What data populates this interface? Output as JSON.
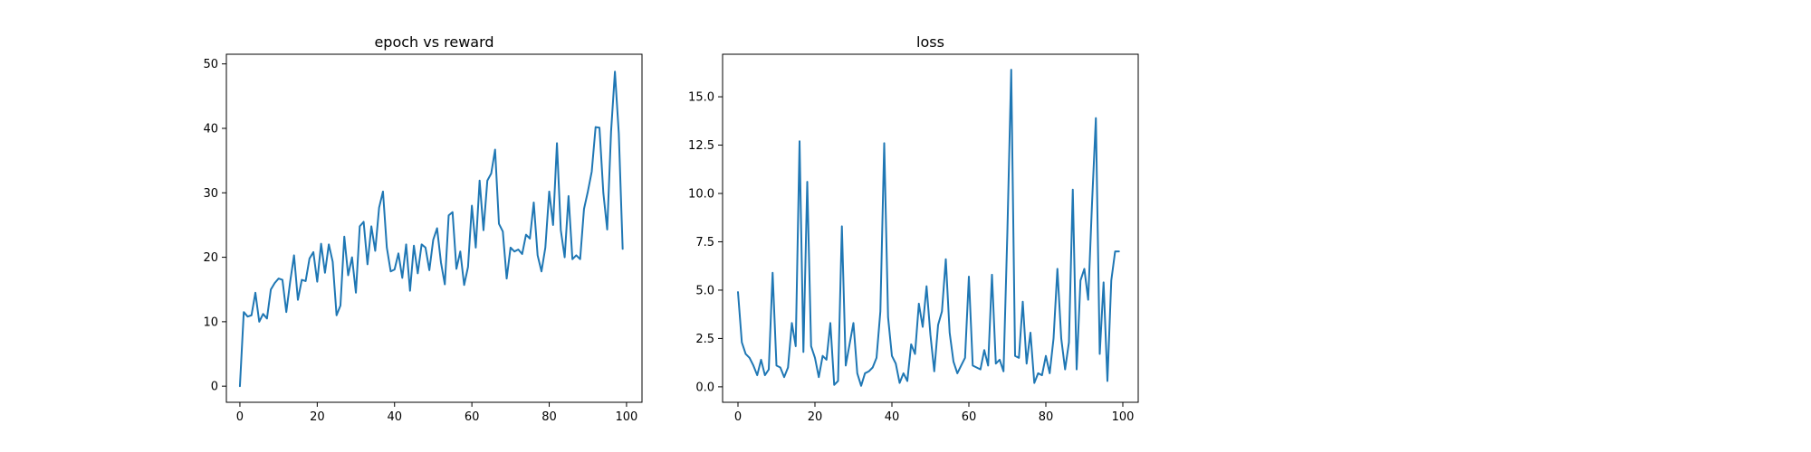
{
  "chart_data": [
    {
      "type": "line",
      "title": "epoch vs reward",
      "xlabel": "",
      "ylabel": "",
      "xlim": [
        -3.5,
        104
      ],
      "ylim": [
        -2.5,
        51.5
      ],
      "xticks": [
        0,
        20,
        40,
        60,
        80,
        100
      ],
      "xtick_labels": [
        "0",
        "20",
        "40",
        "60",
        "80",
        "100"
      ],
      "yticks": [
        0,
        10,
        20,
        30,
        40,
        50
      ],
      "ytick_labels": [
        "0",
        "10",
        "20",
        "30",
        "40",
        "50"
      ],
      "grid": false,
      "color": "#1f77b4",
      "series": [
        {
          "name": "reward",
          "x": [
            0,
            1,
            2,
            3,
            4,
            5,
            6,
            7,
            8,
            9,
            10,
            11,
            12,
            13,
            14,
            15,
            16,
            17,
            18,
            19,
            20,
            21,
            22,
            23,
            24,
            25,
            26,
            27,
            28,
            29,
            30,
            31,
            32,
            33,
            34,
            35,
            36,
            37,
            38,
            39,
            40,
            41,
            42,
            43,
            44,
            45,
            46,
            47,
            48,
            49,
            50,
            51,
            52,
            53,
            54,
            55,
            56,
            57,
            58,
            59,
            60,
            61,
            62,
            63,
            64,
            65,
            66,
            67,
            68,
            69,
            70,
            71,
            72,
            73,
            74,
            75,
            76,
            77,
            78,
            79,
            80,
            81,
            82,
            83,
            84,
            85,
            86,
            87,
            88,
            89,
            90,
            91,
            92,
            93,
            94,
            95,
            96,
            97,
            98,
            99
          ],
          "values": [
            0,
            11.5,
            10.8,
            11.0,
            14.5,
            10.0,
            11.2,
            10.5,
            15.0,
            16.0,
            16.7,
            16.5,
            11.5,
            16.2,
            20.3,
            13.4,
            16.5,
            16.3,
            19.8,
            20.8,
            16.2,
            22.1,
            17.6,
            22.0,
            19.3,
            11.0,
            12.5,
            23.2,
            17.2,
            20.0,
            14.5,
            24.8,
            25.5,
            18.9,
            24.8,
            21.0,
            27.7,
            30.2,
            21.5,
            17.8,
            18.1,
            20.6,
            16.8,
            22.0,
            14.8,
            21.8,
            17.5,
            22.0,
            21.5,
            18.0,
            22.7,
            24.5,
            19.2,
            15.8,
            26.5,
            27.0,
            18.2,
            20.9,
            15.7,
            18.5,
            28.0,
            21.5,
            31.9,
            24.2,
            31.9,
            33.0,
            36.7,
            25.2,
            24.0,
            16.7,
            21.5,
            20.9,
            21.2,
            20.5,
            23.5,
            22.9,
            28.5,
            20.3,
            17.8,
            21.5,
            30.2,
            25.0,
            37.7,
            24.2,
            20.0,
            29.5,
            19.7,
            20.3,
            19.7,
            27.5,
            30.2,
            33.3,
            40.2,
            40.1,
            30.0,
            24.3,
            39.5,
            48.8,
            39.2,
            21.3
          ]
        }
      ]
    },
    {
      "type": "line",
      "title": "loss",
      "xlabel": "",
      "ylabel": "",
      "xlim": [
        -4,
        104
      ],
      "ylim": [
        -0.8,
        17.2
      ],
      "xticks": [
        0,
        20,
        40,
        60,
        80,
        100
      ],
      "xtick_labels": [
        "0",
        "20",
        "40",
        "60",
        "80",
        "100"
      ],
      "yticks": [
        0,
        2.5,
        5,
        7.5,
        10,
        12.5,
        15
      ],
      "ytick_labels": [
        "0.0",
        "2.5",
        "5.0",
        "7.5",
        "10.0",
        "12.5",
        "15.0"
      ],
      "grid": false,
      "color": "#1f77b4",
      "series": [
        {
          "name": "loss",
          "x": [
            0,
            1,
            2,
            3,
            4,
            5,
            6,
            7,
            8,
            9,
            10,
            11,
            12,
            13,
            14,
            15,
            16,
            17,
            18,
            19,
            20,
            21,
            22,
            23,
            24,
            25,
            26,
            27,
            28,
            29,
            30,
            31,
            32,
            33,
            34,
            35,
            36,
            37,
            38,
            39,
            40,
            41,
            42,
            43,
            44,
            45,
            46,
            47,
            48,
            49,
            50,
            51,
            52,
            53,
            54,
            55,
            56,
            57,
            58,
            59,
            60,
            61,
            62,
            63,
            64,
            65,
            66,
            67,
            68,
            69,
            70,
            71,
            72,
            73,
            74,
            75,
            76,
            77,
            78,
            79,
            80,
            81,
            82,
            83,
            84,
            85,
            86,
            87,
            88,
            89,
            90,
            91,
            92,
            93,
            94,
            95,
            96,
            97,
            98,
            99
          ],
          "values": [
            4.9,
            2.3,
            1.7,
            1.5,
            1.1,
            0.6,
            1.4,
            0.6,
            0.9,
            5.9,
            1.1,
            1.0,
            0.5,
            1.0,
            3.3,
            2.1,
            12.7,
            1.8,
            10.6,
            2.1,
            1.5,
            0.5,
            1.6,
            1.4,
            3.3,
            0.1,
            0.3,
            8.3,
            1.1,
            2.2,
            3.3,
            0.7,
            0.05,
            0.7,
            0.8,
            1.0,
            1.5,
            3.9,
            12.6,
            3.6,
            1.6,
            1.2,
            0.2,
            0.7,
            0.3,
            2.2,
            1.7,
            4.3,
            3.1,
            5.2,
            2.7,
            0.8,
            3.2,
            3.9,
            6.6,
            2.8,
            1.3,
            0.7,
            1.1,
            1.5,
            5.7,
            1.1,
            1.0,
            0.9,
            1.9,
            1.1,
            5.8,
            1.2,
            1.4,
            0.8,
            8.0,
            16.4,
            1.6,
            1.5,
            4.4,
            1.2,
            2.8,
            0.2,
            0.7,
            0.6,
            1.6,
            0.7,
            2.5,
            6.1,
            2.5,
            0.9,
            2.3,
            10.2,
            0.9,
            5.5,
            6.1,
            4.5,
            9.5,
            13.9,
            1.7,
            5.4,
            0.3,
            5.5,
            7.0,
            7.0
          ]
        }
      ]
    }
  ]
}
